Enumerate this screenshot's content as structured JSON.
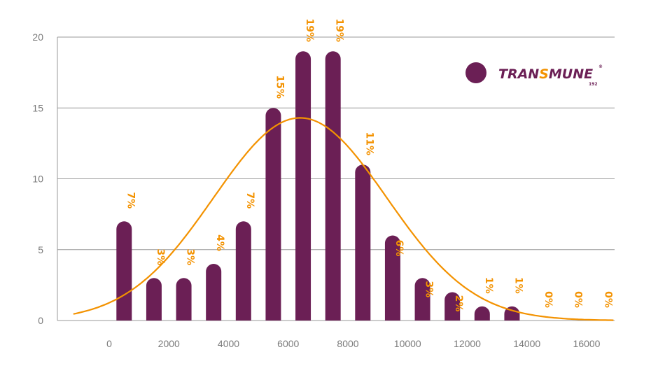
{
  "chart_data": {
    "type": "bar",
    "x_ticks": [
      "0",
      "2000",
      "4000",
      "6000",
      "8000",
      "10000",
      "12000",
      "14000",
      "16000"
    ],
    "y_ticks": [
      "0",
      "5",
      "10",
      "15",
      "20"
    ],
    "ylim": [
      0,
      20
    ],
    "xlim": [
      -1500,
      16900
    ],
    "grid": true,
    "bars": [
      {
        "x": 500,
        "value": 7,
        "label": "7%"
      },
      {
        "x": 1500,
        "value": 3,
        "label": "3%"
      },
      {
        "x": 2500,
        "value": 3,
        "label": "3%"
      },
      {
        "x": 3500,
        "value": 4,
        "label": "4%"
      },
      {
        "x": 4500,
        "value": 7,
        "label": "7%"
      },
      {
        "x": 5500,
        "value": 15,
        "label": "15%"
      },
      {
        "x": 6500,
        "value": 19,
        "label": "19%"
      },
      {
        "x": 7500,
        "value": 19,
        "label": "19%"
      },
      {
        "x": 8500,
        "value": 11,
        "label": "11%"
      },
      {
        "x": 9500,
        "value": 6,
        "label": "6%"
      },
      {
        "x": 10500,
        "value": 3,
        "label": "3%"
      },
      {
        "x": 11500,
        "value": 2,
        "label": "2%"
      },
      {
        "x": 12500,
        "value": 1,
        "label": "1%"
      },
      {
        "x": 13500,
        "value": 1,
        "label": "1%"
      },
      {
        "x": 14500,
        "value": 0,
        "label": "0%"
      },
      {
        "x": 15500,
        "value": 0,
        "label": "0%"
      },
      {
        "x": 16500,
        "value": 0,
        "label": "0%"
      }
    ],
    "curve": {
      "type": "normal-fit",
      "mean": 6400,
      "sd": 2900,
      "peak": 14.3,
      "x_range": [
        -1200,
        16900
      ]
    },
    "bar_color": "#6b1f55",
    "label_color": "#f39200",
    "curve_color": "#f39200",
    "grid_color": "#9a9a9a"
  },
  "brand": {
    "name_part1": "TRAN",
    "name_s": "S",
    "name_part2": "MUNE",
    "trademark": "®",
    "subtext": "192",
    "dot_color": "#6b1f55",
    "accent_color": "#f39200"
  }
}
